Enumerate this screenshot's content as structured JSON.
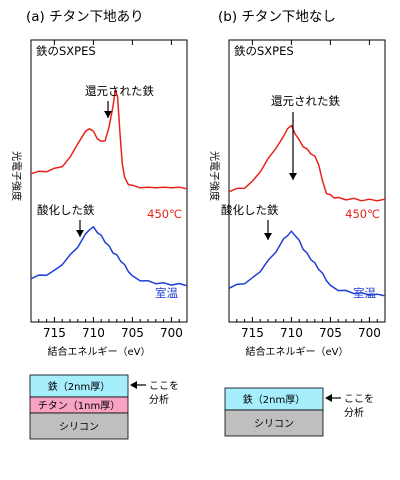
{
  "chart_data": [
    {
      "type": "line",
      "panel_title": "(a) チタン下地あり",
      "inner_label": "鉄のSXPES",
      "xlabel": "結合エネルギー（eV）",
      "ylabel": "光電子強度",
      "xlim": [
        718,
        698
      ],
      "x_ticks": [
        715,
        710,
        705,
        700
      ],
      "series": [
        {
          "name": "450℃",
          "color": "#e8231c",
          "x": [
            718,
            717,
            716,
            715,
            714,
            713,
            712,
            711,
            710.5,
            710,
            709.5,
            709,
            708.5,
            708,
            707.5,
            707.2,
            706.9,
            706.6,
            706.3,
            706,
            705.5,
            705,
            704,
            703,
            702,
            701,
            700,
            699,
            698
          ],
          "y": [
            0.15,
            0.16,
            0.17,
            0.19,
            0.22,
            0.3,
            0.45,
            0.56,
            0.6,
            0.56,
            0.5,
            0.46,
            0.48,
            0.6,
            0.82,
            0.97,
            0.92,
            0.55,
            0.25,
            0.1,
            0.04,
            0.02,
            0.01,
            0.0,
            0.01,
            0.0,
            0.01,
            0.0,
            0.0
          ]
        },
        {
          "name": "室温",
          "color": "#1f3fd6",
          "x": [
            718,
            717,
            716,
            715,
            714,
            713,
            712,
            711,
            710.5,
            710,
            709.5,
            709,
            708.5,
            708,
            707.5,
            707,
            706.5,
            706,
            705.5,
            705,
            704,
            703,
            702,
            701,
            700,
            699,
            698
          ],
          "y": [
            0.1,
            0.13,
            0.15,
            0.2,
            0.3,
            0.42,
            0.55,
            0.72,
            0.8,
            0.82,
            0.76,
            0.7,
            0.62,
            0.55,
            0.47,
            0.42,
            0.35,
            0.28,
            0.2,
            0.12,
            0.07,
            0.05,
            0.03,
            0.02,
            0.01,
            0.01,
            0.0
          ]
        }
      ],
      "annotations": [
        "還元された鉄",
        "酸化した鉄"
      ]
    },
    {
      "type": "line",
      "panel_title": "(b) チタン下地なし",
      "inner_label": "鉄のSXPES",
      "xlabel": "結合エネルギー（eV）",
      "ylabel": "光電子強度",
      "xlim": [
        718,
        698
      ],
      "x_ticks": [
        715,
        710,
        705,
        700
      ],
      "series": [
        {
          "name": "450℃",
          "color": "#e8231c",
          "x": [
            718,
            717,
            716,
            715,
            714,
            713,
            712,
            711,
            710.5,
            710,
            709.5,
            709,
            708.5,
            708,
            707.5,
            707,
            706.5,
            706,
            705.5,
            705,
            704.5,
            704,
            703,
            702,
            701,
            700,
            699,
            698
          ],
          "y": [
            0.1,
            0.12,
            0.14,
            0.2,
            0.32,
            0.45,
            0.58,
            0.7,
            0.8,
            0.82,
            0.74,
            0.66,
            0.6,
            0.56,
            0.52,
            0.48,
            0.4,
            0.2,
            0.08,
            0.05,
            0.03,
            0.02,
            0.01,
            0.01,
            0.0,
            0.0,
            0.0,
            0.0
          ]
        },
        {
          "name": "室温",
          "color": "#1f3fd6",
          "x": [
            718,
            717,
            716,
            715,
            714,
            713,
            712,
            711,
            710.5,
            710,
            709.5,
            709,
            708.5,
            708,
            707.5,
            707,
            706.5,
            706,
            705.5,
            705,
            704,
            703,
            702,
            701,
            700,
            699,
            698
          ],
          "y": [
            0.1,
            0.13,
            0.16,
            0.22,
            0.32,
            0.45,
            0.58,
            0.74,
            0.8,
            0.84,
            0.8,
            0.72,
            0.62,
            0.55,
            0.48,
            0.42,
            0.35,
            0.28,
            0.2,
            0.12,
            0.07,
            0.05,
            0.03,
            0.02,
            0.01,
            0.0,
            0.0
          ]
        }
      ],
      "annotations": [
        "還元された鉄",
        "酸化した鉄"
      ]
    }
  ],
  "diagrams": [
    {
      "layers": [
        {
          "label": "鉄（2nm厚）",
          "color": "#a6eefc"
        },
        {
          "label": "チタン（1nm厚）",
          "color": "#f9a3c4"
        },
        {
          "label": "シリコン",
          "color": "#bfbfbf"
        }
      ],
      "note": "ここを分析"
    },
    {
      "layers": [
        {
          "label": "鉄（2nm厚）",
          "color": "#a6eefc"
        },
        {
          "label": "シリコン",
          "color": "#bfbfbf"
        }
      ],
      "note": "ここを分析"
    }
  ]
}
